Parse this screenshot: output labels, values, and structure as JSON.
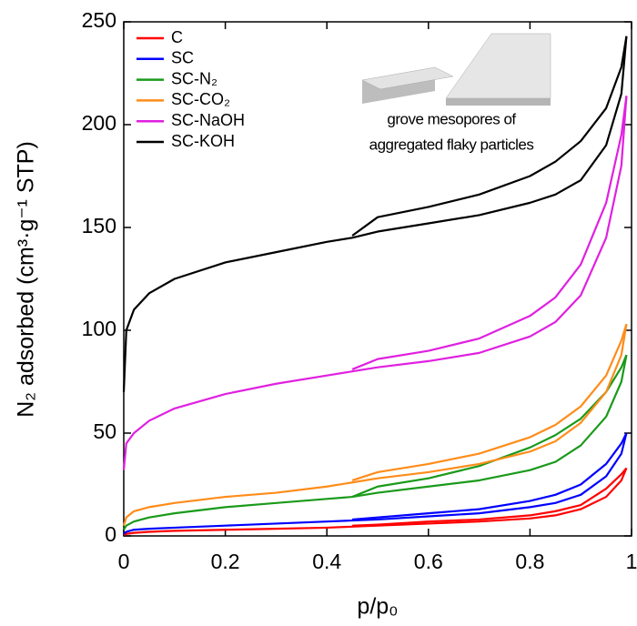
{
  "chart_data": {
    "type": "line",
    "xlabel": "p/p₀",
    "ylabel": "N₂ adsorbed (cm³·g⁻¹ STP)",
    "annotation": [
      "grove mesopores of",
      "aggregated flaky particles"
    ],
    "xlim": [
      0,
      1
    ],
    "ylim": [
      0,
      250
    ],
    "xticks": [
      0,
      0.2,
      0.4,
      0.6,
      0.8,
      1
    ],
    "yticks": [
      0,
      50,
      100,
      150,
      200,
      250
    ],
    "legend": "upper left",
    "x": [
      0,
      0.005,
      0.02,
      0.05,
      0.1,
      0.2,
      0.3,
      0.4,
      0.45,
      0.5,
      0.6,
      0.7,
      0.8,
      0.85,
      0.9,
      0.95,
      0.98,
      0.99
    ],
    "series": [
      {
        "name": "C",
        "color": "#ff0000",
        "values": [
          0.5,
          1,
          1.5,
          2,
          2.5,
          3,
          3.5,
          4,
          4.5,
          5,
          6,
          7,
          8.5,
          10,
          13,
          19,
          27,
          33
        ],
        "desorption_values": [
          null,
          null,
          null,
          null,
          null,
          null,
          null,
          null,
          5,
          5.5,
          7,
          8,
          10,
          12,
          15,
          23,
          30,
          33
        ]
      },
      {
        "name": "SC",
        "color": "#0000ff",
        "values": [
          1,
          2,
          3,
          3.5,
          4,
          5,
          6,
          7,
          7.5,
          8,
          9.5,
          11,
          14,
          16,
          20,
          29,
          40,
          50
        ],
        "desorption_values": [
          null,
          null,
          null,
          null,
          null,
          null,
          null,
          null,
          8,
          9,
          11,
          13,
          17,
          20,
          25,
          35,
          45,
          50
        ]
      },
      {
        "name": "SC-N₂",
        "color": "#1a9a1a",
        "values": [
          3,
          5,
          7,
          9,
          11,
          14,
          16,
          18,
          19,
          21,
          24,
          27,
          32,
          36,
          44,
          58,
          75,
          88
        ],
        "desorption_values": [
          null,
          null,
          null,
          null,
          null,
          null,
          null,
          null,
          19,
          24,
          28,
          34,
          43,
          49,
          57,
          70,
          82,
          88
        ]
      },
      {
        "name": "SC-CO₂",
        "color": "#ff8c1a",
        "values": [
          5,
          9,
          12,
          14,
          16,
          19,
          21,
          24,
          26,
          28,
          31,
          35,
          41,
          46,
          55,
          70,
          88,
          103
        ],
        "desorption_values": [
          null,
          null,
          null,
          null,
          null,
          null,
          null,
          null,
          27,
          31,
          35,
          40,
          48,
          54,
          63,
          78,
          95,
          103
        ]
      },
      {
        "name": "SC-NaOH",
        "color": "#e020e0",
        "values": [
          32,
          45,
          50,
          56,
          62,
          69,
          74,
          78,
          80,
          82,
          85,
          89,
          97,
          104,
          117,
          145,
          180,
          214
        ],
        "desorption_values": [
          null,
          null,
          null,
          null,
          null,
          null,
          null,
          null,
          81,
          86,
          90,
          96,
          107,
          116,
          132,
          162,
          195,
          214
        ]
      },
      {
        "name": "SC-KOH",
        "color": "#000000",
        "values": [
          70,
          100,
          110,
          118,
          125,
          133,
          138,
          143,
          145,
          148,
          152,
          156,
          162,
          166,
          173,
          190,
          215,
          243
        ],
        "desorption_values": [
          null,
          null,
          null,
          null,
          null,
          null,
          null,
          null,
          146,
          155,
          160,
          166,
          175,
          182,
          192,
          208,
          228,
          243
        ]
      }
    ]
  }
}
